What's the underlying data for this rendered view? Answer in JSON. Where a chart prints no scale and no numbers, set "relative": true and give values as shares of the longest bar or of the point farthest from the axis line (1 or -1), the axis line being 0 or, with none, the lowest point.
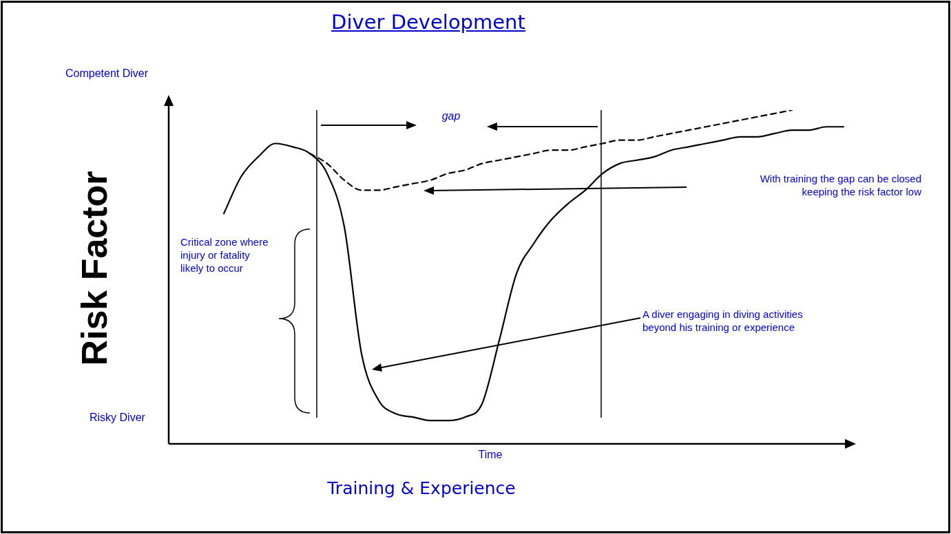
{
  "chart_data": {
    "type": "line",
    "title": "Diver Development",
    "xlabel": "Time",
    "ylabel": "Risk Factor",
    "relative": true,
    "legend": false,
    "marker": "none",
    "categories": [
      null,
      null,
      null,
      null,
      null,
      null,
      null,
      null,
      null,
      null,
      null,
      null,
      null,
      null,
      null,
      null,
      null,
      null,
      null,
      null,
      null,
      null,
      null,
      null,
      null,
      null,
      null,
      null,
      null,
      null,
      null,
      null,
      null,
      null,
      null,
      null,
      null
    ],
    "series": [
      {
        "color": "#000000",
        "line_style": "solid",
        "values": [
          0.69,
          0.8,
          0.86,
          0.9,
          0.89,
          0.87,
          0.81,
          0.65,
          0.27,
          0.13,
          0.09,
          0.08,
          0.07,
          0.07,
          0.08,
          0.12,
          0.31,
          0.51,
          0.6,
          0.67,
          0.72,
          0.76,
          0.81,
          0.84,
          0.85,
          0.86,
          0.88,
          0.89,
          0.9,
          0.91,
          0.92,
          0.92,
          0.93,
          0.94,
          0.94,
          0.95,
          0.95
        ]
      },
      {
        "color": "#000000",
        "line_style": "dashed",
        "values": [
          null,
          null,
          null,
          null,
          null,
          0.87,
          0.84,
          0.79,
          0.76,
          0.76,
          0.77,
          0.78,
          0.79,
          0.81,
          0.82,
          0.84,
          0.85,
          0.86,
          0.87,
          0.88,
          0.88,
          0.89,
          0.9,
          0.91,
          0.91,
          0.92,
          0.93,
          0.94,
          0.95,
          0.96,
          0.97,
          0.98,
          0.99,
          1.0,
          null,
          null,
          null
        ]
      }
    ],
    "annotations": [
      "Competent Diver",
      "Risky Diver",
      "Training & Experience",
      "gap",
      "Critical zone where injury or fatality likely to occur",
      "With training the gap can be closed keeping the risk factor low",
      "A diver engaging in diving activities beyond his training or experience"
    ]
  }
}
